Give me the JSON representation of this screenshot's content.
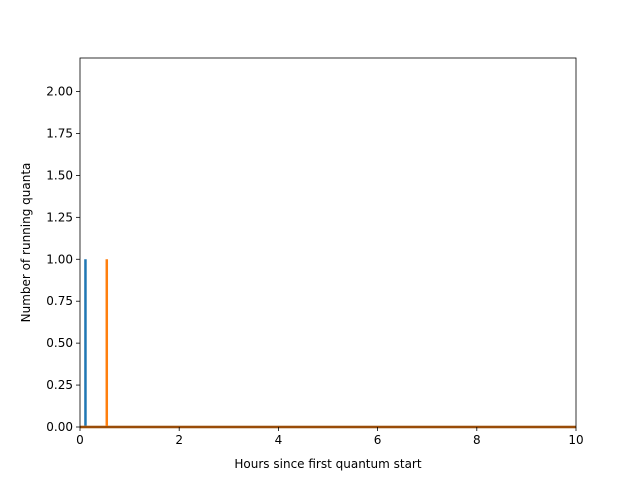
{
  "chart_data": {
    "type": "line",
    "title": "",
    "xlabel": "Hours since first quantum start",
    "ylabel": "Number of running quanta",
    "xlim": [
      0,
      10
    ],
    "ylim": [
      0,
      2.2
    ],
    "grid": false,
    "legend": "none",
    "x_ticks": [
      0,
      2,
      4,
      6,
      8,
      10
    ],
    "x_tick_labels": [
      "0",
      "2",
      "4",
      "6",
      "8",
      "10"
    ],
    "y_ticks": [
      0,
      0.25,
      0.5,
      0.75,
      1.0,
      1.25,
      1.5,
      1.75,
      2.0
    ],
    "y_tick_labels": [
      "0.00",
      "0.25",
      "0.50",
      "0.75",
      "1.00",
      "1.25",
      "1.50",
      "1.75",
      "2.00"
    ],
    "series": [
      {
        "color": "#1f77b4",
        "x": [
          0,
          0.11,
          0.11,
          0.11,
          0.11,
          10
        ],
        "y": [
          0,
          0,
          1,
          1,
          0,
          0
        ]
      },
      {
        "color": "#ff7f0e",
        "x": [
          0,
          0.54,
          0.54,
          0.54,
          0.54,
          10
        ],
        "y": [
          0,
          0,
          1,
          1,
          0,
          0
        ]
      }
    ]
  }
}
